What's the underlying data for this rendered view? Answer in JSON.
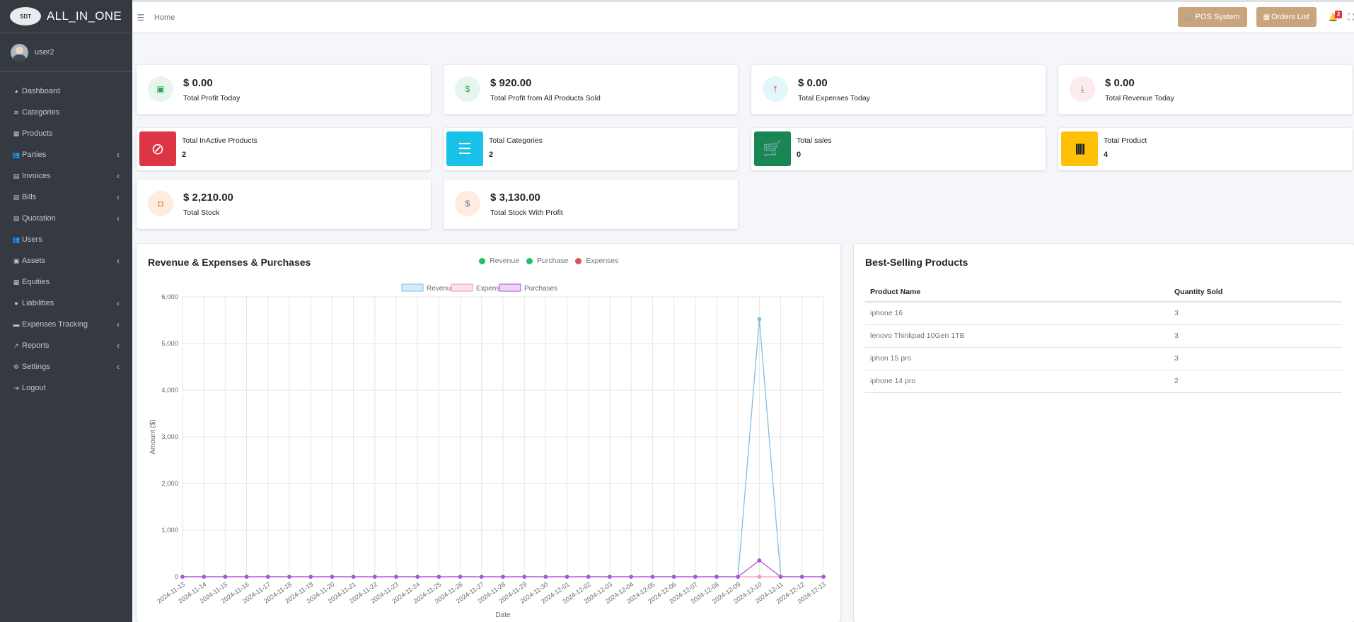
{
  "brand": {
    "logo_text": "SDT",
    "name": "ALL_IN_ONE"
  },
  "user": {
    "name": "user2"
  },
  "sidebar": {
    "items": [
      {
        "label": "Dashboard",
        "icon": "dashboard-icon",
        "glyph": "◕",
        "has_children": false
      },
      {
        "label": "Categories",
        "icon": "layers-icon",
        "glyph": "≋",
        "has_children": false
      },
      {
        "label": "Products",
        "icon": "box-icon",
        "glyph": "▦",
        "has_children": false
      },
      {
        "label": "Parties",
        "icon": "users-icon",
        "glyph": "👥",
        "has_children": true
      },
      {
        "label": "Invoices",
        "icon": "file-icon",
        "glyph": "▤",
        "has_children": true
      },
      {
        "label": "Bills",
        "icon": "file-icon",
        "glyph": "▤",
        "has_children": true
      },
      {
        "label": "Quotation",
        "icon": "file-icon",
        "glyph": "▤",
        "has_children": true
      },
      {
        "label": "Users",
        "icon": "users-icon",
        "glyph": "👥",
        "has_children": false
      },
      {
        "label": "Assets",
        "icon": "archive-icon",
        "glyph": "▣",
        "has_children": true
      },
      {
        "label": "Equities",
        "icon": "box-icon",
        "glyph": "▦",
        "has_children": false
      },
      {
        "label": "Liabilities",
        "icon": "info-circle-icon",
        "glyph": "●",
        "has_children": true
      },
      {
        "label": "Expenses Tracking",
        "icon": "money-icon",
        "glyph": "▬",
        "has_children": true
      },
      {
        "label": "Reports",
        "icon": "chart-line-icon",
        "glyph": "↗",
        "has_children": true
      },
      {
        "label": "Settings",
        "icon": "cogs-icon",
        "glyph": "⚙",
        "has_children": true
      },
      {
        "label": "Logout",
        "icon": "logout-icon",
        "glyph": "⇥",
        "has_children": false
      }
    ]
  },
  "topbar": {
    "home": "Home",
    "pos_button": "POS System",
    "orders_button": "Orders List",
    "notification_count": "2"
  },
  "stats_row1": [
    {
      "value": "$ 0.00",
      "label": "Total Profit Today",
      "icon": "money-bill-icon",
      "glyph": "▣",
      "bg": "#e6f6ec",
      "fg": "#28a745"
    },
    {
      "value": "$ 920.00",
      "label": "Total Profit from All Products Sold",
      "icon": "dollar-icon",
      "glyph": "$",
      "bg": "#e6f6ec",
      "fg": "#28a745"
    },
    {
      "value": "$ 0.00",
      "label": "Total Expenses Today",
      "icon": "upload-icon",
      "glyph": "⤒",
      "bg": "#e3f6fa",
      "fg": "#dc3545"
    },
    {
      "value": "$ 0.00",
      "label": "Total Revenue Today",
      "icon": "download-icon",
      "glyph": "⤓",
      "bg": "#fdebed",
      "fg": "#17a2b8"
    }
  ],
  "stats_row2": [
    {
      "label": "Total InActive Products",
      "value": "2",
      "icon": "ban-icon",
      "glyph": "⊘",
      "bg": "#dc3545"
    },
    {
      "label": "Total Categories",
      "value": "2",
      "icon": "list-icon",
      "glyph": "☰",
      "bg": "#17c1e8"
    },
    {
      "label": "Total sales",
      "value": "0",
      "icon": "cart-icon",
      "glyph": "🛒",
      "bg": "#198754"
    },
    {
      "label": "Total Product",
      "value": "4",
      "icon": "barcode-icon",
      "glyph": "|||||",
      "bg": "#ffc107"
    }
  ],
  "stats_row3": [
    {
      "value": "$ 2,210.00",
      "label": "Total Stock",
      "icon": "shopping-bag-icon",
      "glyph": "◘",
      "bg": "#fdecdf",
      "fg": "#fd7e14"
    },
    {
      "value": "$ 3,130.00",
      "label": "Total Stock With Profit",
      "icon": "dollar-bill-icon",
      "glyph": "$",
      "bg": "#fdecdf",
      "fg": "#6c757d"
    }
  ],
  "revenue_card": {
    "title": "Revenue & Expenses & Purchases",
    "legend": [
      {
        "label": "Revenue",
        "color": "#20c063"
      },
      {
        "label": "Purchase",
        "color": "#20c063"
      },
      {
        "label": "Expenses",
        "color": "#e0505a"
      }
    ]
  },
  "best_selling": {
    "title": "Best-Selling Products",
    "columns": [
      "Product Name",
      "Quantity Sold"
    ],
    "rows": [
      [
        "iphone 16",
        "3"
      ],
      [
        "lenovo Thinkpad 10Gen 1TB",
        "3"
      ],
      [
        "iphon 15 pro",
        "3"
      ],
      [
        "iphone 14 pro",
        "2"
      ]
    ]
  },
  "chart_data": {
    "type": "line",
    "xlabel": "Date",
    "ylabel": "Amount ($)",
    "ylim": [
      0,
      6000
    ],
    "yticks": [
      0,
      1000,
      2000,
      3000,
      4000,
      5000,
      6000
    ],
    "grid": true,
    "legend_position": "top",
    "x": [
      "2024-11-13",
      "2024-11-14",
      "2024-11-15",
      "2024-11-16",
      "2024-11-17",
      "2024-11-18",
      "2024-11-19",
      "2024-11-20",
      "2024-11-21",
      "2024-11-22",
      "2024-11-23",
      "2024-11-24",
      "2024-11-25",
      "2024-11-26",
      "2024-11-27",
      "2024-11-28",
      "2024-11-29",
      "2024-11-30",
      "2024-12-01",
      "2024-12-02",
      "2024-12-03",
      "2024-12-04",
      "2024-12-05",
      "2024-12-06",
      "2024-12-07",
      "2024-12-08",
      "2024-12-09",
      "2024-12-10",
      "2024-12-11",
      "2024-12-12",
      "2024-12-13"
    ],
    "series": [
      {
        "name": "Revenue",
        "color": "#7fbfe0",
        "fill": "#d6ebf6",
        "values": [
          0,
          0,
          0,
          0,
          0,
          0,
          0,
          0,
          0,
          0,
          0,
          0,
          0,
          0,
          0,
          0,
          0,
          0,
          0,
          0,
          0,
          0,
          0,
          0,
          0,
          0,
          0,
          5520,
          0,
          0,
          0
        ]
      },
      {
        "name": "Expenses",
        "color": "#f19aa8",
        "fill": "#fbe0e4",
        "values": [
          0,
          0,
          0,
          0,
          0,
          0,
          0,
          0,
          0,
          0,
          0,
          0,
          0,
          0,
          0,
          0,
          0,
          0,
          0,
          0,
          0,
          0,
          0,
          0,
          0,
          0,
          0,
          0,
          0,
          0,
          0
        ]
      },
      {
        "name": "Purchases",
        "color": "#b34fe0",
        "fill": "#ecd6f7",
        "values": [
          0,
          0,
          0,
          0,
          0,
          0,
          0,
          0,
          0,
          0,
          0,
          0,
          0,
          0,
          0,
          0,
          0,
          0,
          0,
          0,
          0,
          0,
          0,
          0,
          0,
          0,
          0,
          350,
          0,
          0,
          0
        ]
      }
    ]
  }
}
